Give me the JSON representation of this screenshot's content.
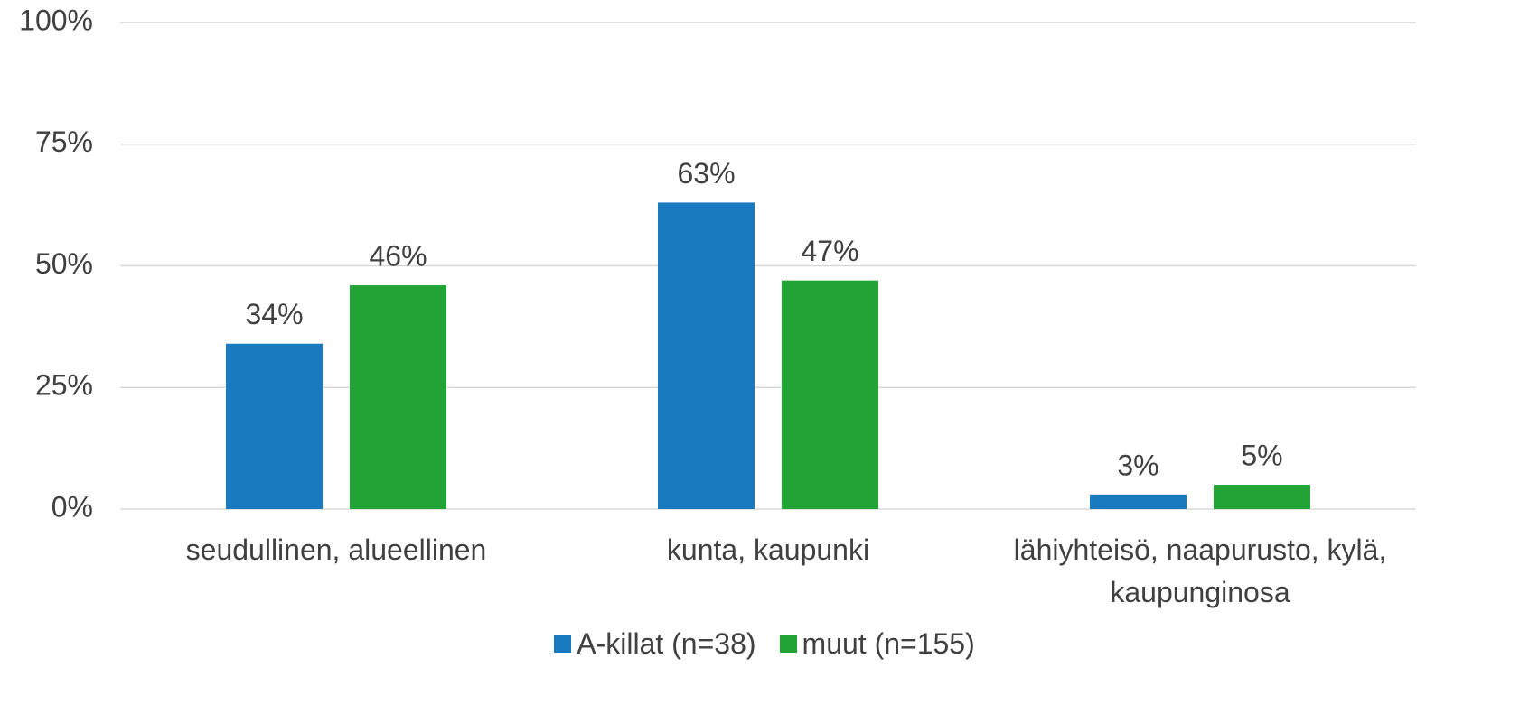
{
  "chart_data": {
    "type": "bar",
    "categories": [
      "seudullinen, alueellinen",
      "kunta, kaupunki",
      "lähiyhteisö, naapurusto, kylä, kaupunginosa"
    ],
    "series": [
      {
        "name": "A-killat (n=38)",
        "color": "#1a7abf",
        "values": [
          34,
          63,
          3
        ],
        "value_labels": [
          "34%",
          "63%",
          "3%"
        ]
      },
      {
        "name": "muut (n=155)",
        "color": "#21a336",
        "values": [
          46,
          47,
          5
        ],
        "value_labels": [
          "46%",
          "47%",
          "5%"
        ]
      }
    ],
    "ylim": [
      0,
      100
    ],
    "yticks": [
      {
        "value": 0,
        "label": "0%"
      },
      {
        "value": 25,
        "label": "25%"
      },
      {
        "value": 50,
        "label": "50%"
      },
      {
        "value": 75,
        "label": "75%"
      },
      {
        "value": 100,
        "label": "100%"
      }
    ],
    "grid": true,
    "legend": "bottom"
  }
}
